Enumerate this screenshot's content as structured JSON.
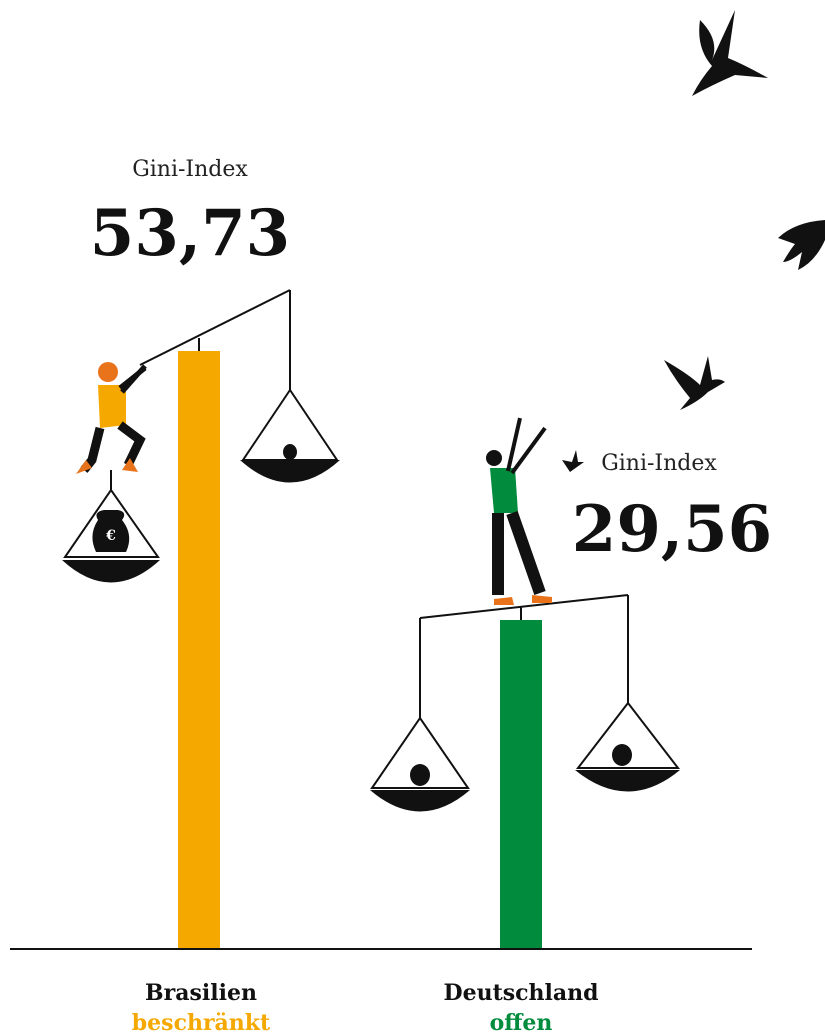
{
  "chart_data": {
    "type": "bar",
    "categories": [
      "Brasilien",
      "Deutschland"
    ],
    "sublabels": [
      "beschränkt",
      "offen"
    ],
    "values": [
      53.73,
      29.56
    ],
    "value_labels": [
      "53,73",
      "29,56"
    ],
    "value_label_title": "Gini-Index",
    "colors": [
      "#f5a800",
      "#008c3c"
    ],
    "ylim": [
      0,
      54
    ]
  }
}
